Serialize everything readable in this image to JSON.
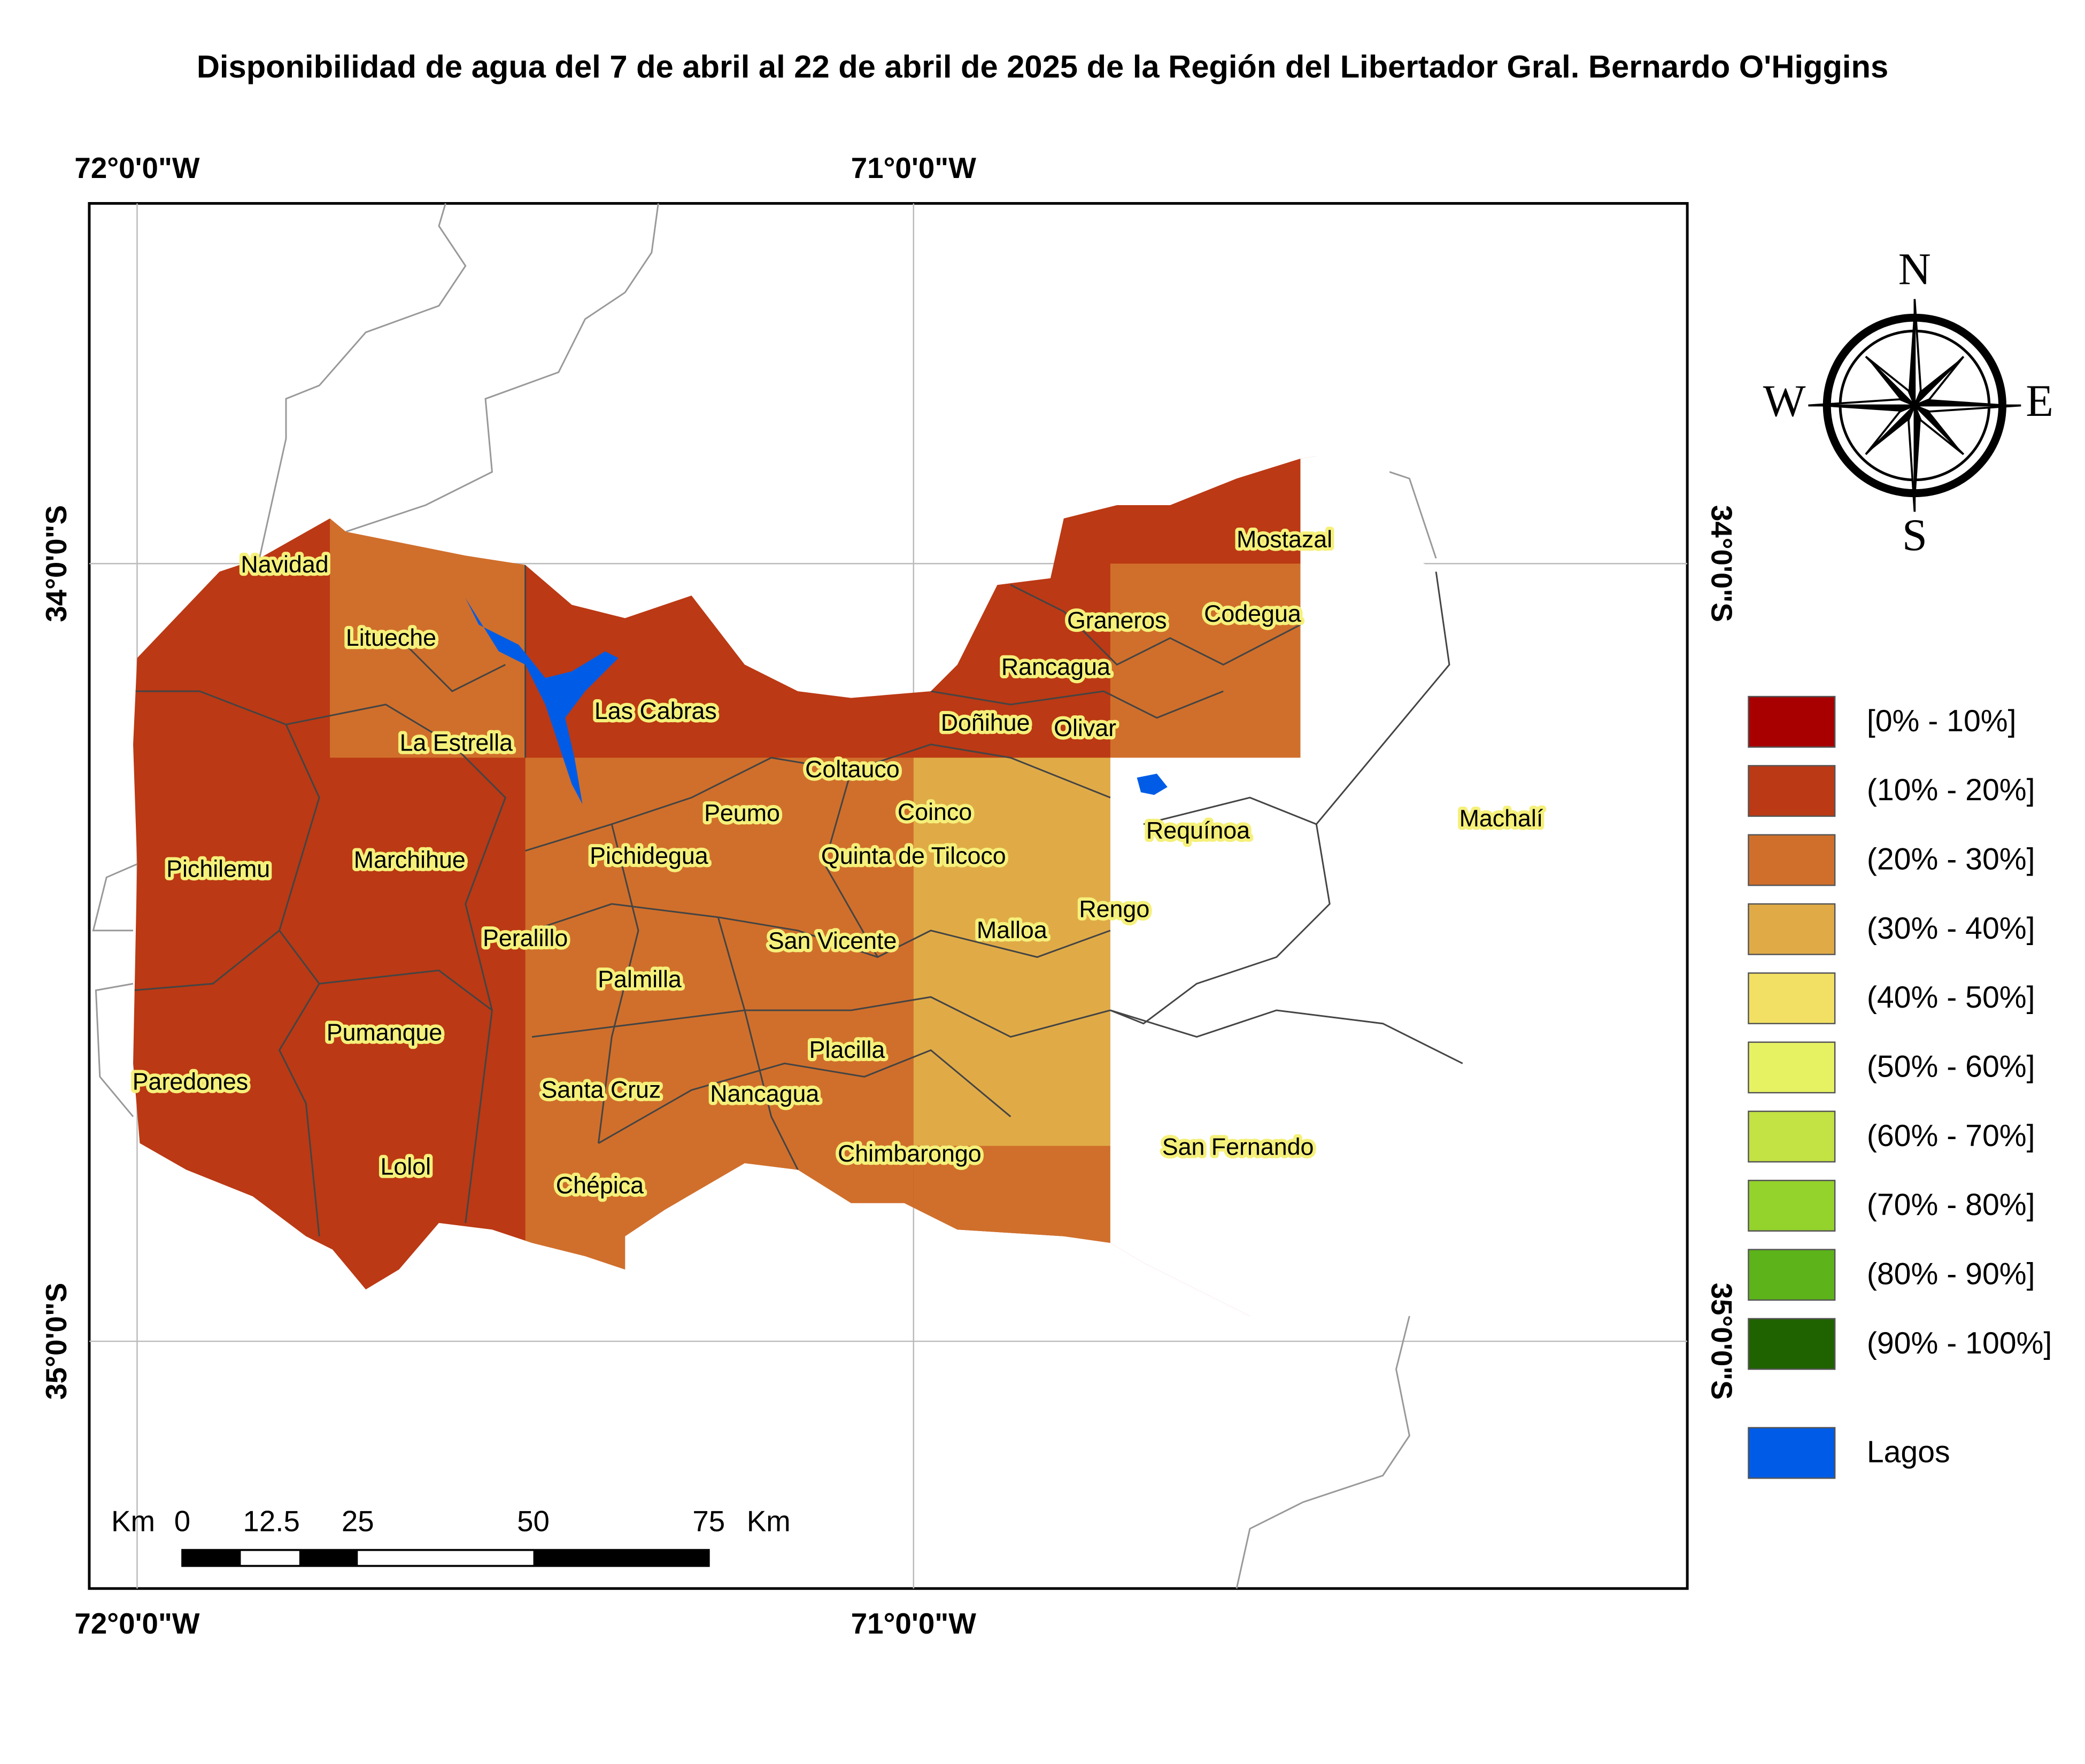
{
  "title": "Disponibilidad de agua del 7 de abril al 22 de abril de 2025 de la Región del Libertador Gral. Bernardo O'Higgins",
  "longitudes": [
    "72°0'0\"W",
    "71°0'0\"W"
  ],
  "latitudes": [
    "34°0'0\"S",
    "35°0'0\"S"
  ],
  "compass": {
    "north": "N",
    "south": "S",
    "east": "E",
    "west": "W"
  },
  "scale_bar": {
    "unit": "Km",
    "labels": [
      "0",
      "12.5",
      "25",
      "50",
      "75"
    ]
  },
  "places": [
    "Navidad",
    "Litueche",
    "La Estrella",
    "Las Cabras",
    "Mostazal",
    "Graneros",
    "Codegua",
    "Rancagua",
    "Doñihue",
    "Olivar",
    "Coltauco",
    "Peumo",
    "Coinco",
    "Quinta de Tilcoco",
    "Requínoa",
    "Machalí",
    "Pichilemu",
    "Marchihue",
    "Pichidegua",
    "Rengo",
    "Peralillo",
    "San Vicente",
    "Malloa",
    "Palmilla",
    "Pumanque",
    "Placilla",
    "Paredones",
    "Santa Cruz",
    "Nancagua",
    "Chimbarongo",
    "San Fernando",
    "Lolol",
    "Chépica"
  ],
  "legend": [
    {
      "label": "[0% - 10%]",
      "color": "#a80000"
    },
    {
      "label": "(10% - 20%]",
      "color": "#bb3914"
    },
    {
      "label": "(20% - 30%]",
      "color": "#d06f2b"
    },
    {
      "label": "(30% - 40%]",
      "color": "#e0ab47"
    },
    {
      "label": "(40% - 50%]",
      "color": "#f2e064"
    },
    {
      "label": "(50% - 60%]",
      "color": "#e6f262"
    },
    {
      "label": "(60% - 70%]",
      "color": "#c3e243"
    },
    {
      "label": "(70% - 80%]",
      "color": "#94d22c"
    },
    {
      "label": "(80% - 90%]",
      "color": "#5db31a"
    },
    {
      "label": "(90% - 100%]",
      "color": "#1f6300"
    },
    {
      "label": "Lagos",
      "color": "#005ce6"
    }
  ]
}
